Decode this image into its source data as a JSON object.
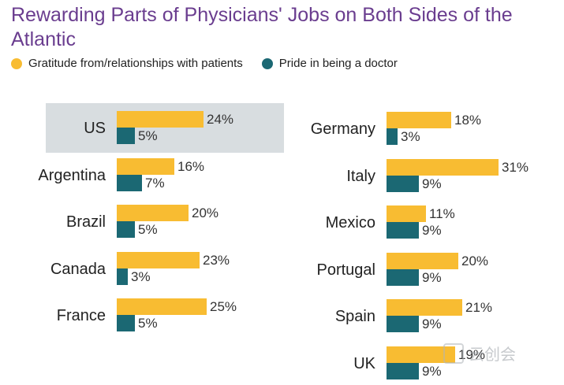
{
  "chart_data": {
    "type": "bar",
    "orientation": "horizontal",
    "title": "Rewarding Parts of Physicians' Jobs on Both Sides of the Atlantic",
    "unit": "%",
    "legend": [
      {
        "name": "Gratitude from/relationships with patients",
        "color": "#f8bc32"
      },
      {
        "name": "Pride in being a doctor",
        "color": "#1b6873"
      }
    ],
    "highlighted": "US",
    "groups": [
      {
        "panel": "left",
        "categories": [
          "US",
          "Argentina",
          "Brazil",
          "Canada",
          "France"
        ],
        "series": [
          {
            "name": "Gratitude from/relationships with patients",
            "values": [
              24,
              16,
              20,
              23,
              25
            ]
          },
          {
            "name": "Pride in being a doctor",
            "values": [
              5,
              7,
              5,
              3,
              5
            ]
          }
        ]
      },
      {
        "panel": "right",
        "categories": [
          "Germany",
          "Italy",
          "Mexico",
          "Portugal",
          "Spain",
          "UK"
        ],
        "series": [
          {
            "name": "Gratitude from/relationships with patients",
            "values": [
              18,
              31,
              11,
              20,
              21,
              19
            ]
          },
          {
            "name": "Pride in being a doctor",
            "values": [
              3,
              9,
              9,
              9,
              9,
              9
            ]
          }
        ]
      }
    ]
  },
  "watermark": "云创会"
}
